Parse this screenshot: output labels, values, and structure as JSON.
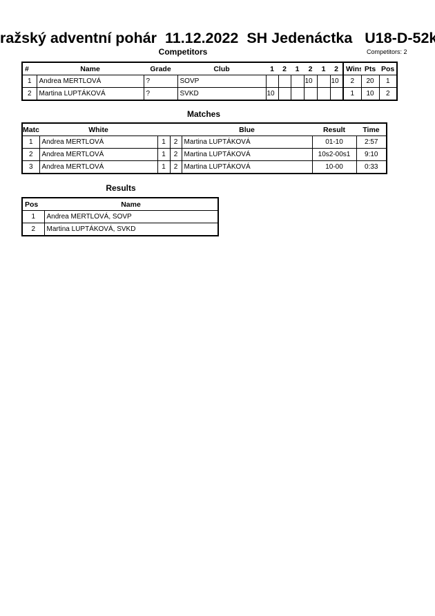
{
  "title": "ražský adventní pohár  11.12.2022  SH Jedenáctka   U18-D-52k",
  "competitors": {
    "heading": "Competitors",
    "count_label": "Competitors: 2",
    "headers": [
      "#",
      "Name",
      "Grade",
      "Club",
      "1",
      "2",
      "1",
      "2",
      "1",
      "2",
      "Wins",
      "Pts",
      "Pos"
    ],
    "rows": [
      [
        "1",
        "Andrea MERTLOVÁ",
        "?",
        "SOVP",
        "",
        "",
        "",
        "10",
        "",
        "10",
        "2",
        "20",
        "1"
      ],
      [
        "2",
        "Martina LUPTÁKOVÁ",
        "?",
        "SVKD",
        "10",
        "",
        "",
        "",
        "",
        "",
        "1",
        "10",
        "2"
      ]
    ]
  },
  "matches": {
    "heading": "Matches",
    "headers": [
      "Match",
      "White",
      "",
      "",
      "Blue",
      "Result",
      "Time"
    ],
    "rows": [
      [
        "1",
        "Andrea MERTLOVÁ",
        "1",
        "2",
        "Martina LUPTÁKOVÁ",
        "01-10",
        "2:57"
      ],
      [
        "2",
        "Andrea MERTLOVÁ",
        "1",
        "2",
        "Martina LUPTÁKOVÁ",
        "10s2-00s1",
        "9:10"
      ],
      [
        "3",
        "Andrea MERTLOVÁ",
        "1",
        "2",
        "Martina LUPTÁKOVÁ",
        "10-00",
        "0:33"
      ]
    ]
  },
  "results": {
    "heading": "Results",
    "headers": [
      "Pos",
      "Name"
    ],
    "rows": [
      [
        "1",
        "Andrea MERTLOVÁ, SOVP"
      ],
      [
        "2",
        "Martina LUPTÁKOVÁ, SVKD"
      ]
    ]
  }
}
